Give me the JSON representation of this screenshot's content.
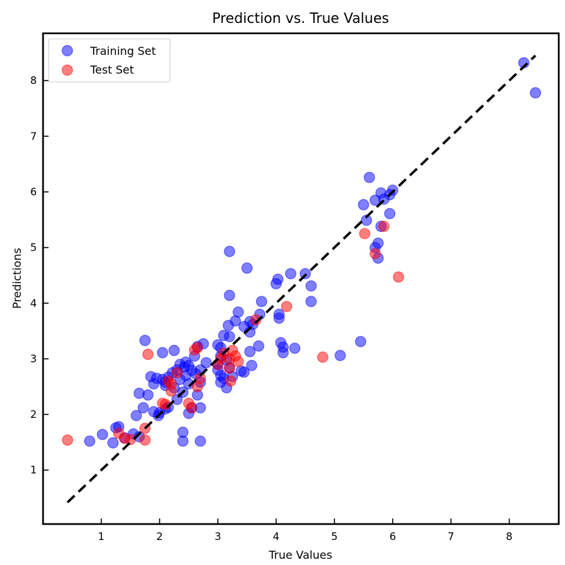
{
  "chart_data": {
    "type": "scatter",
    "title": "Prediction vs. True Values",
    "xlabel": "True Values",
    "ylabel": "Predictions",
    "xlim": [
      0.0,
      8.85
    ],
    "ylim": [
      0.03,
      8.85
    ],
    "xticks": [
      1,
      2,
      3,
      4,
      5,
      6,
      7,
      8
    ],
    "yticks": [
      1,
      2,
      3,
      4,
      5,
      6,
      7,
      8
    ],
    "grid": false,
    "legend_position": "top-left",
    "reference_line": {
      "x": [
        0.42,
        8.45
      ],
      "y": [
        0.42,
        8.45
      ],
      "style": "dashed",
      "color": "#000000"
    },
    "series": [
      {
        "name": "Training Set",
        "color": "#0000ff",
        "points": [
          [
            8.25,
            8.32
          ],
          [
            8.45,
            7.78
          ],
          [
            5.6,
            6.26
          ],
          [
            6.0,
            6.03
          ],
          [
            5.95,
            5.95
          ],
          [
            5.8,
            5.98
          ],
          [
            5.7,
            5.85
          ],
          [
            5.85,
            5.87
          ],
          [
            5.5,
            5.77
          ],
          [
            5.95,
            5.61
          ],
          [
            5.55,
            5.49
          ],
          [
            5.8,
            5.38
          ],
          [
            5.75,
            5.08
          ],
          [
            5.7,
            5.0
          ],
          [
            5.75,
            4.81
          ],
          [
            3.2,
            4.93
          ],
          [
            3.5,
            4.63
          ],
          [
            3.2,
            4.14
          ],
          [
            4.5,
            4.53
          ],
          [
            4.25,
            4.53
          ],
          [
            4.03,
            4.43
          ],
          [
            4.0,
            4.35
          ],
          [
            4.6,
            4.31
          ],
          [
            4.6,
            4.03
          ],
          [
            3.75,
            4.03
          ],
          [
            3.35,
            3.84
          ],
          [
            4.05,
            3.8
          ],
          [
            4.05,
            3.73
          ],
          [
            3.55,
            3.67
          ],
          [
            3.6,
            3.62
          ],
          [
            3.45,
            3.58
          ],
          [
            3.3,
            3.68
          ],
          [
            3.18,
            3.6
          ],
          [
            3.72,
            3.8
          ],
          [
            3.55,
            3.48
          ],
          [
            3.1,
            3.42
          ],
          [
            3.2,
            3.4
          ],
          [
            2.75,
            3.27
          ],
          [
            3.0,
            3.25
          ],
          [
            3.05,
            3.2
          ],
          [
            3.7,
            3.23
          ],
          [
            4.08,
            3.29
          ],
          [
            4.12,
            3.21
          ],
          [
            4.32,
            3.19
          ],
          [
            4.12,
            3.11
          ],
          [
            5.45,
            3.31
          ],
          [
            5.1,
            3.06
          ],
          [
            1.75,
            3.33
          ],
          [
            2.05,
            3.11
          ],
          [
            2.25,
            3.15
          ],
          [
            2.6,
            3.05
          ],
          [
            2.65,
            3.22
          ],
          [
            3.55,
            3.13
          ],
          [
            3.05,
            3.05
          ],
          [
            3.15,
            2.98
          ],
          [
            3.0,
            2.9
          ],
          [
            3.2,
            2.84
          ],
          [
            3.4,
            2.78
          ],
          [
            3.45,
            2.76
          ],
          [
            3.58,
            2.88
          ],
          [
            3.0,
            2.8
          ],
          [
            3.05,
            2.7
          ],
          [
            3.1,
            2.65
          ],
          [
            3.25,
            2.68
          ],
          [
            3.05,
            2.58
          ],
          [
            3.15,
            2.48
          ],
          [
            2.8,
            2.93
          ],
          [
            2.45,
            2.94
          ],
          [
            2.35,
            2.9
          ],
          [
            2.5,
            2.88
          ],
          [
            2.42,
            2.85
          ],
          [
            2.3,
            2.8
          ],
          [
            2.55,
            2.79
          ],
          [
            2.7,
            2.8
          ],
          [
            2.22,
            2.75
          ],
          [
            2.62,
            2.73
          ],
          [
            2.45,
            2.7
          ],
          [
            2.35,
            2.63
          ],
          [
            2.15,
            2.67
          ],
          [
            2.05,
            2.63
          ],
          [
            2.1,
            2.58
          ],
          [
            1.85,
            2.68
          ],
          [
            1.95,
            2.65
          ],
          [
            1.9,
            2.55
          ],
          [
            2.5,
            2.55
          ],
          [
            2.7,
            2.58
          ],
          [
            2.25,
            2.48
          ],
          [
            2.4,
            2.4
          ],
          [
            2.1,
            2.52
          ],
          [
            1.65,
            2.38
          ],
          [
            1.8,
            2.35
          ],
          [
            2.65,
            2.35
          ],
          [
            2.3,
            2.27
          ],
          [
            2.15,
            2.13
          ],
          [
            2.1,
            2.1
          ],
          [
            2.55,
            2.12
          ],
          [
            2.7,
            2.12
          ],
          [
            2.5,
            2.02
          ],
          [
            1.72,
            2.12
          ],
          [
            1.9,
            2.05
          ],
          [
            2.0,
            2.03
          ],
          [
            1.98,
            1.98
          ],
          [
            1.6,
            1.98
          ],
          [
            1.3,
            1.78
          ],
          [
            1.25,
            1.76
          ],
          [
            1.02,
            1.64
          ],
          [
            1.55,
            1.65
          ],
          [
            1.4,
            1.58
          ],
          [
            1.65,
            1.6
          ],
          [
            1.2,
            1.49
          ],
          [
            0.8,
            1.52
          ],
          [
            2.4,
            1.68
          ],
          [
            2.4,
            1.52
          ],
          [
            2.7,
            1.52
          ]
        ]
      },
      {
        "name": "Test Set",
        "color": "#ff0000",
        "points": [
          [
            5.52,
            5.25
          ],
          [
            5.85,
            5.38
          ],
          [
            5.7,
            4.89
          ],
          [
            6.1,
            4.47
          ],
          [
            4.18,
            3.94
          ],
          [
            3.65,
            3.7
          ],
          [
            3.25,
            3.15
          ],
          [
            3.1,
            3.1
          ],
          [
            3.3,
            3.05
          ],
          [
            3.2,
            3.0
          ],
          [
            3.05,
            3.0
          ],
          [
            3.0,
            2.9
          ],
          [
            3.35,
            2.95
          ],
          [
            3.2,
            2.83
          ],
          [
            3.22,
            2.6
          ],
          [
            2.65,
            3.2
          ],
          [
            2.6,
            3.16
          ],
          [
            1.8,
            3.08
          ],
          [
            4.8,
            3.03
          ],
          [
            2.3,
            2.75
          ],
          [
            2.7,
            2.65
          ],
          [
            2.15,
            2.6
          ],
          [
            2.2,
            2.55
          ],
          [
            2.65,
            2.5
          ],
          [
            2.2,
            2.42
          ],
          [
            2.05,
            2.2
          ],
          [
            2.1,
            2.18
          ],
          [
            2.5,
            2.2
          ],
          [
            2.55,
            2.12
          ],
          [
            1.75,
            1.75
          ],
          [
            1.3,
            1.66
          ],
          [
            1.4,
            1.57
          ],
          [
            1.5,
            1.55
          ],
          [
            1.75,
            1.54
          ],
          [
            0.42,
            1.54
          ]
        ]
      }
    ]
  }
}
